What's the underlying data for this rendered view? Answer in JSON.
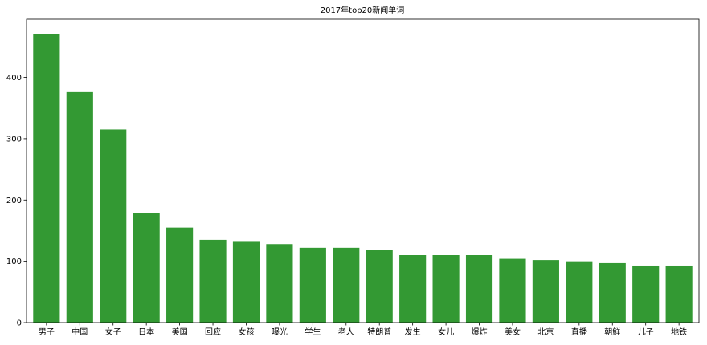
{
  "chart_data": {
    "type": "bar",
    "title": "2017年top20新闻单词",
    "xlabel": "",
    "ylabel": "",
    "categories": [
      "男子",
      "中国",
      "女子",
      "日本",
      "美国",
      "回应",
      "女孩",
      "曝光",
      "学生",
      "老人",
      "特朗普",
      "发生",
      "女儿",
      "爆炸",
      "美女",
      "北京",
      "直播",
      "朝鲜",
      "儿子",
      "地铁"
    ],
    "values": [
      471,
      376,
      315,
      179,
      155,
      135,
      133,
      128,
      122,
      122,
      119,
      110,
      110,
      110,
      104,
      102,
      100,
      97,
      93,
      93
    ],
    "ylim": [
      0,
      495
    ],
    "yticks": [
      0,
      100,
      200,
      300,
      400
    ],
    "bar_color": "#339933",
    "grid": false,
    "legend": "none"
  }
}
